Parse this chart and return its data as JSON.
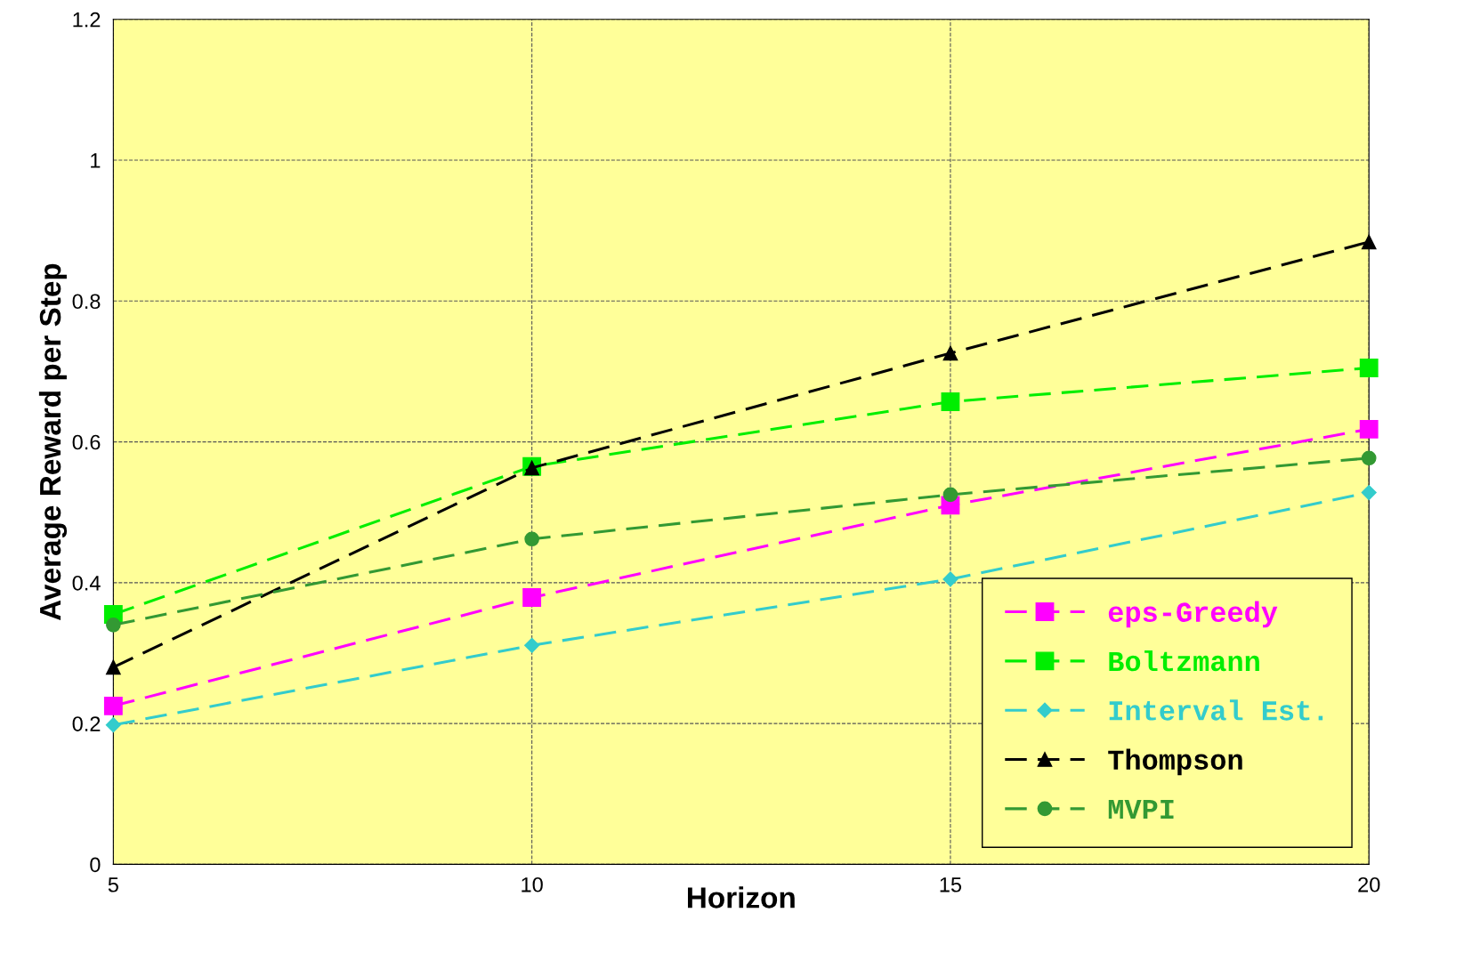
{
  "chart_data": {
    "type": "line",
    "xlabel": "Horizon",
    "ylabel": "Average Reward per Step",
    "x": [
      5,
      10,
      15,
      20
    ],
    "series": [
      {
        "name": "eps-Greedy",
        "color": "#ff00ff",
        "marker": "square",
        "values": [
          0.225,
          0.379,
          0.51,
          0.618
        ]
      },
      {
        "name": "Boltzmann",
        "color": "#00ee00",
        "marker": "square",
        "values": [
          0.355,
          0.565,
          0.657,
          0.705
        ]
      },
      {
        "name": "Interval Est.",
        "color": "#33cccc",
        "marker": "diamond",
        "values": [
          0.198,
          0.311,
          0.405,
          0.528
        ]
      },
      {
        "name": "Thompson",
        "color": "#000000",
        "marker": "triangle",
        "values": [
          0.28,
          0.563,
          0.726,
          0.884
        ]
      },
      {
        "name": "MVPI",
        "color": "#339933",
        "marker": "circle",
        "values": [
          0.34,
          0.462,
          0.525,
          0.577
        ]
      }
    ],
    "xlim": [
      5,
      20
    ],
    "xticks": [
      5,
      10,
      15,
      20
    ],
    "ylim": [
      0,
      1.2
    ],
    "yticks": [
      0,
      0.2,
      0.4,
      0.6,
      0.8,
      1,
      1.2
    ],
    "grid": true,
    "legend": "bottom right",
    "line_style": "dashed"
  }
}
